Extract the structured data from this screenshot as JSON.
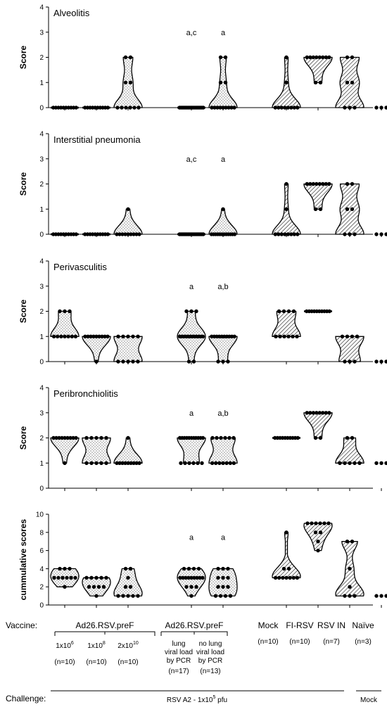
{
  "chart_data": {
    "type": "violin",
    "x_positions": [
      0,
      1,
      2,
      4,
      5,
      7,
      8,
      9,
      10
    ],
    "panels": [
      {
        "title": "Alveolitis",
        "ylabel": "Score",
        "ylim": [
          0,
          4
        ],
        "yticks": [
          "0",
          "1",
          "2",
          "3",
          "4"
        ],
        "groups": [
          {
            "values": [
              0,
              0,
              0,
              0,
              0,
              0,
              0,
              0,
              0,
              0
            ],
            "fill": "dots"
          },
          {
            "values": [
              0,
              0,
              0,
              0,
              0,
              0,
              0,
              0,
              0,
              0
            ],
            "fill": "dots"
          },
          {
            "values": [
              0,
              0,
              0,
              0,
              0,
              0,
              1,
              1,
              2,
              2
            ],
            "fill": "dots"
          },
          {
            "values": [
              0,
              0,
              0,
              0,
              0,
              0,
              0,
              0,
              0,
              0,
              0,
              0,
              0,
              0,
              0,
              0,
              0
            ],
            "fill": "dots",
            "sig": "a,c"
          },
          {
            "values": [
              0,
              0,
              0,
              0,
              0,
              0,
              0,
              0,
              0,
              1,
              1,
              2,
              2
            ],
            "fill": "dots",
            "sig": "a"
          },
          {
            "values": [
              0,
              0,
              0,
              0,
              0,
              0,
              0,
              0,
              1,
              2
            ],
            "fill": "hatch"
          },
          {
            "values": [
              1,
              1,
              2,
              2,
              2,
              2,
              2,
              2,
              2,
              2
            ],
            "fill": "hatch"
          },
          {
            "values": [
              0,
              0,
              0,
              1,
              1,
              2,
              2
            ],
            "fill": "hatch"
          },
          {
            "values": [
              0,
              0,
              0
            ],
            "fill": "dots-only"
          }
        ]
      },
      {
        "title": "Interstitial pneumonia",
        "ylabel": "Score",
        "ylim": [
          0,
          4
        ],
        "yticks": [
          "0",
          "1",
          "2",
          "3",
          "4"
        ],
        "groups": [
          {
            "values": [
              0,
              0,
              0,
              0,
              0,
              0,
              0,
              0,
              0,
              0
            ],
            "fill": "dots"
          },
          {
            "values": [
              0,
              0,
              0,
              0,
              0,
              0,
              0,
              0,
              0,
              0
            ],
            "fill": "dots"
          },
          {
            "values": [
              0,
              0,
              0,
              0,
              0,
              0,
              0,
              0,
              0,
              1
            ],
            "fill": "dots"
          },
          {
            "values": [
              0,
              0,
              0,
              0,
              0,
              0,
              0,
              0,
              0,
              0,
              0,
              0,
              0,
              0,
              0,
              0,
              0
            ],
            "fill": "dots",
            "sig": "a,c"
          },
          {
            "values": [
              0,
              0,
              0,
              0,
              0,
              0,
              0,
              0,
              0,
              0,
              0,
              0,
              1
            ],
            "fill": "dots",
            "sig": "a"
          },
          {
            "values": [
              0,
              0,
              0,
              0,
              0,
              0,
              0,
              0,
              1,
              2
            ],
            "fill": "hatch"
          },
          {
            "values": [
              1,
              1,
              2,
              2,
              2,
              2,
              2,
              2,
              2,
              2
            ],
            "fill": "hatch"
          },
          {
            "values": [
              0,
              0,
              0,
              1,
              1,
              2,
              2
            ],
            "fill": "hatch"
          },
          {
            "values": [
              0,
              0,
              0
            ],
            "fill": "dots-only"
          }
        ]
      },
      {
        "title": "Perivasculitis",
        "ylabel": "Score",
        "ylim": [
          0,
          4
        ],
        "yticks": [
          "0",
          "1",
          "2",
          "3",
          "4"
        ],
        "groups": [
          {
            "values": [
              1,
              1,
              1,
              1,
              1,
              1,
              1,
              2,
              2,
              2
            ],
            "fill": "dots"
          },
          {
            "values": [
              0,
              1,
              1,
              1,
              1,
              1,
              1,
              1,
              1,
              1
            ],
            "fill": "dots"
          },
          {
            "values": [
              0,
              0,
              0,
              0,
              0,
              1,
              1,
              1,
              1,
              1
            ],
            "fill": "dots"
          },
          {
            "values": [
              0,
              0,
              1,
              1,
              1,
              1,
              1,
              1,
              1,
              1,
              1,
              1,
              1,
              1,
              2,
              2,
              2
            ],
            "fill": "dots",
            "sig": "a"
          },
          {
            "values": [
              0,
              0,
              0,
              1,
              1,
              1,
              1,
              1,
              1,
              1,
              1,
              1,
              1
            ],
            "fill": "dots",
            "sig": "a,b"
          },
          {
            "values": [
              1,
              1,
              1,
              1,
              1,
              1,
              2,
              2,
              2,
              2
            ],
            "fill": "hatch"
          },
          {
            "values": [
              2,
              2,
              2,
              2,
              2,
              2,
              2,
              2,
              2,
              2
            ],
            "fill": "hatch"
          },
          {
            "values": [
              0,
              0,
              0,
              1,
              1,
              1,
              1
            ],
            "fill": "hatch"
          },
          {
            "values": [
              0,
              0,
              0
            ],
            "fill": "dots-only"
          }
        ]
      },
      {
        "title": "Peribronchiolitis",
        "ylabel": "Score",
        "ylim": [
          0,
          4
        ],
        "yticks": [
          "0",
          "1",
          "2",
          "3",
          "4"
        ],
        "groups": [
          {
            "values": [
              1,
              2,
              2,
              2,
              2,
              2,
              2,
              2,
              2,
              2
            ],
            "fill": "dots"
          },
          {
            "values": [
              1,
              1,
              1,
              1,
              1,
              2,
              2,
              2,
              2,
              2
            ],
            "fill": "dots"
          },
          {
            "values": [
              1,
              1,
              1,
              1,
              1,
              1,
              1,
              1,
              1,
              2
            ],
            "fill": "dots"
          },
          {
            "values": [
              1,
              1,
              1,
              1,
              1,
              1,
              2,
              2,
              2,
              2,
              2,
              2,
              2,
              2,
              2,
              2,
              2
            ],
            "fill": "dots",
            "sig": "a"
          },
          {
            "values": [
              1,
              1,
              1,
              1,
              1,
              1,
              1,
              2,
              2,
              2,
              2,
              2,
              2
            ],
            "fill": "dots",
            "sig": "a,b"
          },
          {
            "values": [
              2,
              2,
              2,
              2,
              2,
              2,
              2,
              2,
              2,
              2
            ],
            "fill": "hatch"
          },
          {
            "values": [
              2,
              2,
              3,
              3,
              3,
              3,
              3,
              3,
              3,
              3
            ],
            "fill": "hatch"
          },
          {
            "values": [
              1,
              1,
              1,
              1,
              1,
              2,
              2
            ],
            "fill": "hatch"
          },
          {
            "values": [
              1,
              1,
              1
            ],
            "fill": "dots-only"
          }
        ]
      },
      {
        "title": "",
        "ylabel": "cummulative scores",
        "ylim": [
          0,
          10
        ],
        "yticks": [
          "0",
          "2",
          "4",
          "6",
          "8",
          "10"
        ],
        "groups": [
          {
            "values": [
              2,
              3,
              3,
              3,
              3,
              3,
              3,
              4,
              4,
              4
            ],
            "fill": "dots"
          },
          {
            "values": [
              1,
              2,
              2,
              2,
              2,
              3,
              3,
              3,
              3,
              3
            ],
            "fill": "dots"
          },
          {
            "values": [
              1,
              1,
              1,
              1,
              1,
              2,
              2,
              3,
              4,
              4
            ],
            "fill": "dots"
          },
          {
            "values": [
              1,
              2,
              2,
              2,
              3,
              3,
              3,
              3,
              3,
              3,
              3,
              3,
              3,
              4,
              4,
              4,
              4
            ],
            "fill": "dots",
            "sig": "a"
          },
          {
            "values": [
              1,
              1,
              1,
              1,
              2,
              2,
              2,
              3,
              3,
              3,
              4,
              4,
              4
            ],
            "fill": "dots",
            "sig": "a"
          },
          {
            "values": [
              3,
              3,
              3,
              3,
              3,
              3,
              3,
              4,
              4,
              8
            ],
            "fill": "hatch"
          },
          {
            "values": [
              6,
              7,
              8,
              8,
              9,
              9,
              9,
              9,
              9,
              9
            ],
            "fill": "hatch"
          },
          {
            "values": [
              1,
              1,
              1,
              2,
              4,
              7,
              7
            ],
            "fill": "hatch"
          },
          {
            "values": [
              1,
              1,
              1
            ],
            "fill": "dots-only"
          }
        ]
      }
    ]
  },
  "footer": {
    "vaccine_label": "Vaccine:",
    "challenge_label": "Challenge:",
    "ad26_label_1": "Ad26.RSV.preF",
    "ad26_label_2": "Ad26.RSV.preF",
    "dose_1_base": "1x10",
    "dose_1_exp": "6",
    "dose_2_base": "1x10",
    "dose_2_exp": "8",
    "dose_3_base": "2x10",
    "dose_3_exp": "10",
    "n_1": "(n=10)",
    "n_2": "(n=10)",
    "n_3": "(n=10)",
    "pcr_pos_line1": "lung",
    "pcr_pos_line2": "viral load",
    "pcr_pos_line3": "by PCR",
    "pcr_pos_n": "(n=17)",
    "pcr_neg_line1": "no lung",
    "pcr_neg_line2": "viral load",
    "pcr_neg_line3": "by PCR",
    "pcr_neg_n": "(n=13)",
    "mock_label": "Mock",
    "mock_n": "(n=10)",
    "firsv_label": "FI-RSV",
    "firsv_n": "(n=10)",
    "rsvin_label": "RSV IN",
    "rsvin_n": "(n=7)",
    "naive_label": "Naïve",
    "naive_n": "(n=3)",
    "challenge_text_base": "RSV A2 - 1x10",
    "challenge_text_exp": "5",
    "challenge_text_unit": " pfu",
    "challenge_mock": "Mock"
  }
}
